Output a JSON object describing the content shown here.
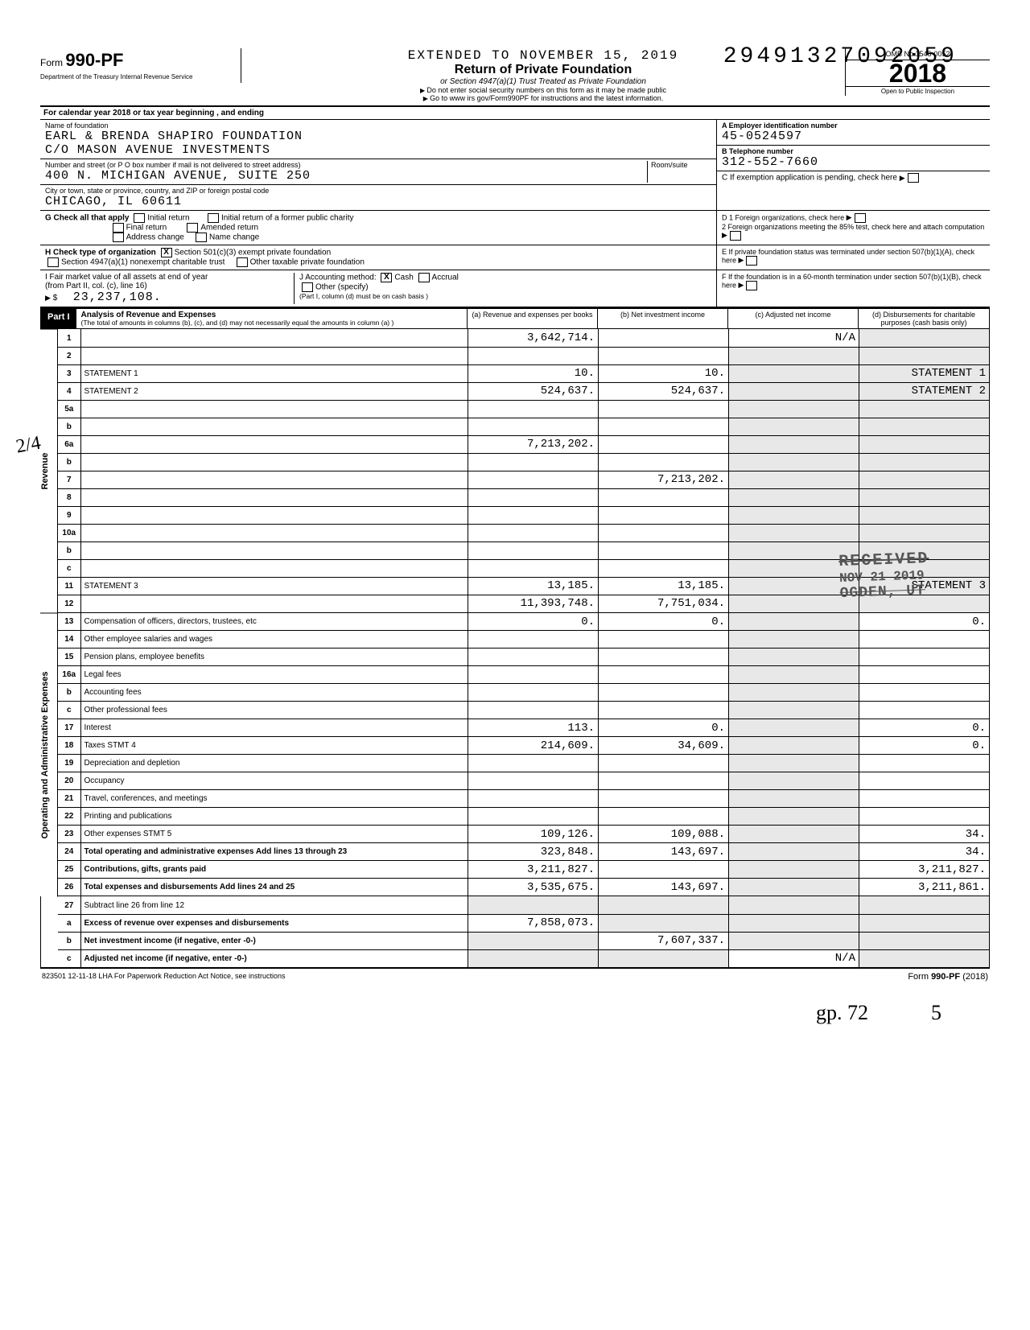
{
  "dln": "29491327092059",
  "header": {
    "extended": "EXTENDED TO NOVEMBER 15, 2019",
    "form_prefix": "Form",
    "form_number": "990-PF",
    "title": "Return of Private Foundation",
    "subtitle": "or Section 4947(a)(1) Trust Treated as Private Foundation",
    "note1": "Do not enter social security numbers on this form as it may be made public",
    "note2": "Go to www irs gov/Form990PF for instructions and the latest information.",
    "dept": "Department of the Treasury\nInternal Revenue Service",
    "omb": "OMB No 1545-0052",
    "year": "2018",
    "inspection": "Open to Public Inspection"
  },
  "cal": "For calendar year 2018 or tax year beginning                              , and ending",
  "foundation": {
    "name_label": "Name of foundation",
    "name1": "EARL & BRENDA SHAPIRO FOUNDATION",
    "name2": "C/O MASON AVENUE INVESTMENTS",
    "addr_label": "Number and street (or P O box number if mail is not delivered to street address)",
    "addr": "400 N. MICHIGAN AVENUE, SUITE 250",
    "room_label": "Room/suite",
    "city_label": "City or town, state or province, country, and ZIP or foreign postal code",
    "city": "CHICAGO, IL   60611"
  },
  "right": {
    "a_label": "A Employer identification number",
    "ein": "45-0524597",
    "b_label": "B Telephone number",
    "phone": "312-552-7660",
    "c_label": "C If exemption application is pending, check here",
    "d1_label": "D 1 Foreign organizations, check here",
    "d2_label": "2 Foreign organizations meeting the 85% test, check here and attach computation",
    "e_label": "E If private foundation status was terminated under section 507(b)(1)(A), check here",
    "f_label": "F If the foundation is in a 60-month termination under section 507(b)(1)(B), check here"
  },
  "g": {
    "label": "G  Check all that apply",
    "opts": [
      "Initial return",
      "Final return",
      "Address change",
      "Initial return of a former public charity",
      "Amended return",
      "Name change"
    ]
  },
  "h": {
    "label": "H  Check type of organization",
    "opt1": "Section 501(c)(3) exempt private foundation",
    "opt2": "Section 4947(a)(1) nonexempt charitable trust",
    "opt3": "Other taxable private foundation"
  },
  "i": {
    "label": "I  Fair market value of all assets at end of year",
    "sub": "(from Part II, col. (c), line 16)",
    "val": "23,237,108.",
    "note": "(Part I, column (d) must be on cash basis )"
  },
  "j": {
    "label": "J  Accounting method:",
    "cash": "Cash",
    "accrual": "Accrual",
    "other": "Other (specify)"
  },
  "part1": {
    "label": "Part I",
    "title": "Analysis of Revenue and Expenses",
    "sub": "(The total of amounts in columns (b), (c), and (d) may not necessarily equal the amounts in column (a) )",
    "cols": {
      "a": "(a) Revenue and expenses per books",
      "b": "(b) Net investment income",
      "c": "(c) Adjusted net income",
      "d": "(d) Disbursements for charitable purposes (cash basis only)"
    }
  },
  "side": {
    "revenue": "Revenue",
    "expenses": "Operating and Administrative Expenses"
  },
  "rows": [
    {
      "n": "1",
      "d": "",
      "a": "3,642,714.",
      "b": "",
      "c": "N/A"
    },
    {
      "n": "2",
      "d": "",
      "a": "",
      "b": "",
      "c": ""
    },
    {
      "n": "3",
      "d": "STATEMENT 1",
      "a": "10.",
      "b": "10.",
      "c": ""
    },
    {
      "n": "4",
      "d": "STATEMENT 2",
      "a": "524,637.",
      "b": "524,637.",
      "c": ""
    },
    {
      "n": "5a",
      "d": "",
      "a": "",
      "b": "",
      "c": ""
    },
    {
      "n": "b",
      "d": "",
      "a": "",
      "b": "",
      "c": ""
    },
    {
      "n": "6a",
      "d": "",
      "a": "7,213,202.",
      "b": "",
      "c": ""
    },
    {
      "n": "b",
      "d": "",
      "a": "",
      "b": "",
      "c": ""
    },
    {
      "n": "7",
      "d": "",
      "a": "",
      "b": "7,213,202.",
      "c": ""
    },
    {
      "n": "8",
      "d": "",
      "a": "",
      "b": "",
      "c": ""
    },
    {
      "n": "9",
      "d": "",
      "a": "",
      "b": "",
      "c": ""
    },
    {
      "n": "10a",
      "d": "",
      "a": "",
      "b": "",
      "c": ""
    },
    {
      "n": "b",
      "d": "",
      "a": "",
      "b": "",
      "c": ""
    },
    {
      "n": "c",
      "d": "",
      "a": "",
      "b": "",
      "c": ""
    },
    {
      "n": "11",
      "d": "STATEMENT 3",
      "a": "13,185.",
      "b": "13,185.",
      "c": ""
    },
    {
      "n": "12",
      "d": "",
      "a": "11,393,748.",
      "b": "7,751,034.",
      "c": ""
    }
  ],
  "exp_rows": [
    {
      "n": "13",
      "d": "Compensation of officers, directors, trustees, etc",
      "a": "0.",
      "b": "0.",
      "c": "",
      "e": "0."
    },
    {
      "n": "14",
      "d": "Other employee salaries and wages",
      "a": "",
      "b": "",
      "c": "",
      "e": ""
    },
    {
      "n": "15",
      "d": "Pension plans, employee benefits",
      "a": "",
      "b": "",
      "c": "",
      "e": ""
    },
    {
      "n": "16a",
      "d": "Legal fees",
      "a": "",
      "b": "",
      "c": "",
      "e": ""
    },
    {
      "n": "b",
      "d": "Accounting fees",
      "a": "",
      "b": "",
      "c": "",
      "e": ""
    },
    {
      "n": "c",
      "d": "Other professional fees",
      "a": "",
      "b": "",
      "c": "",
      "e": ""
    },
    {
      "n": "17",
      "d": "Interest",
      "a": "113.",
      "b": "0.",
      "c": "",
      "e": "0."
    },
    {
      "n": "18",
      "d": "Taxes                              STMT 4",
      "a": "214,609.",
      "b": "34,609.",
      "c": "",
      "e": "0."
    },
    {
      "n": "19",
      "d": "Depreciation and depletion",
      "a": "",
      "b": "",
      "c": "",
      "e": ""
    },
    {
      "n": "20",
      "d": "Occupancy",
      "a": "",
      "b": "",
      "c": "",
      "e": ""
    },
    {
      "n": "21",
      "d": "Travel, conferences, and meetings",
      "a": "",
      "b": "",
      "c": "",
      "e": ""
    },
    {
      "n": "22",
      "d": "Printing and publications",
      "a": "",
      "b": "",
      "c": "",
      "e": ""
    },
    {
      "n": "23",
      "d": "Other expenses                  STMT 5",
      "a": "109,126.",
      "b": "109,088.",
      "c": "",
      "e": "34."
    },
    {
      "n": "24",
      "d": "Total operating and administrative expenses  Add lines 13 through 23",
      "a": "323,848.",
      "b": "143,697.",
      "c": "",
      "e": "34."
    },
    {
      "n": "25",
      "d": "Contributions, gifts, grants paid",
      "a": "3,211,827.",
      "b": "",
      "c": "",
      "e": "3,211,827."
    },
    {
      "n": "26",
      "d": "Total expenses and disbursements Add lines 24 and 25",
      "a": "3,535,675.",
      "b": "143,697.",
      "c": "",
      "e": "3,211,861."
    }
  ],
  "net_rows": [
    {
      "n": "27",
      "d": "Subtract line 26 from line 12",
      "a": "",
      "b": "",
      "c": "",
      "e": ""
    },
    {
      "n": "a",
      "d": "Excess of revenue over expenses and disbursements",
      "a": "7,858,073.",
      "b": "",
      "c": "",
      "e": ""
    },
    {
      "n": "b",
      "d": "Net investment income (if negative, enter -0-)",
      "a": "",
      "b": "7,607,337.",
      "c": "",
      "e": ""
    },
    {
      "n": "c",
      "d": "Adjusted net income (if negative, enter -0-)",
      "a": "",
      "b": "",
      "c": "N/A",
      "e": ""
    }
  ],
  "footer": {
    "left": "823501  12-11-18   LHA  For Paperwork Reduction Act Notice, see instructions",
    "right_pre": "Form ",
    "right_form": "990-PF",
    "right_yr": " (2018)"
  },
  "stamp": {
    "r1": "RECEIVED",
    "r2": "NOV 21 2019",
    "r3": "OGDEN, UT"
  },
  "handnote": "2/4",
  "sig": "gp. 72",
  "corner": "5"
}
